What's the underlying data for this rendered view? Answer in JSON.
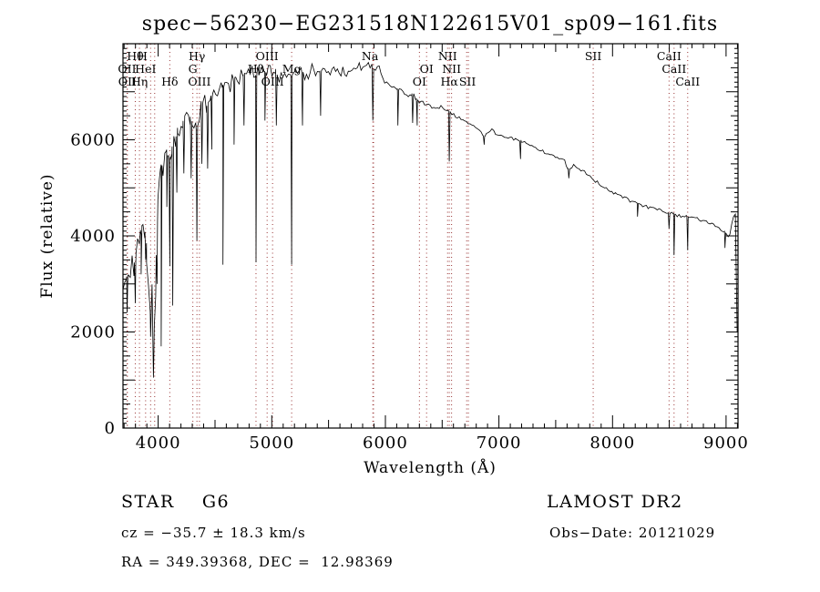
{
  "title": "spec−56230−EG231518N122615V01_sp09−161.fits",
  "annotations": {
    "object_class": "STAR    G6",
    "survey": "LAMOST DR2",
    "cz": "cz = −35.7 ± 18.3 km/s",
    "obs_date": "Obs−Date: 20121029",
    "radec": "RA = 349.39368, DEC =  12.98369"
  },
  "chart_data": {
    "type": "line",
    "title": "spec−56230−EG231518N122615V01_sp09−161.fits",
    "xlabel": "Wavelength (Å)",
    "ylabel": "Flux (relative)",
    "xlim": [
      3690,
      9105
    ],
    "ylim": [
      0,
      8000
    ],
    "x_tick_labels": [
      4000,
      5000,
      6000,
      7000,
      8000,
      9000
    ],
    "y_tick_labels": [
      0,
      2000,
      4000,
      6000
    ],
    "grid": false,
    "line_color": "#000000",
    "marker_color": "#993333",
    "noise_seed": 1337,
    "line_markers": [
      3726,
      3729,
      3798,
      3835,
      3889,
      3933,
      3969,
      4102,
      4305,
      4341,
      4363,
      4861,
      4959,
      5007,
      5175,
      5890,
      5896,
      6300,
      6363,
      6548,
      6563,
      6583,
      6716,
      6731,
      7830,
      8498,
      8542,
      8662
    ],
    "line_labels": [
      {
        "text": "Hθ",
        "wl": 3798,
        "row": 1
      },
      {
        "text": "H",
        "wl": 3862,
        "row": 1
      },
      {
        "text": "Hγ",
        "wl": 4341,
        "row": 1
      },
      {
        "text": "OIII",
        "wl": 4959,
        "row": 1
      },
      {
        "text": "Na",
        "wl": 5865,
        "row": 1
      },
      {
        "text": "NII",
        "wl": 6548,
        "row": 1
      },
      {
        "text": "SII",
        "wl": 7830,
        "row": 1
      },
      {
        "text": "CaII",
        "wl": 8498,
        "row": 1
      },
      {
        "text": "OII",
        "wl": 3726,
        "row": 2
      },
      {
        "text": "HeI",
        "wl": 3889,
        "row": 2
      },
      {
        "text": "G",
        "wl": 4305,
        "row": 2
      },
      {
        "text": "Hβ",
        "wl": 4861,
        "row": 2
      },
      {
        "text": "Mg",
        "wl": 5175,
        "row": 2
      },
      {
        "text": "OI",
        "wl": 6363,
        "row": 2
      },
      {
        "text": "NII",
        "wl": 6583,
        "row": 2
      },
      {
        "text": "CaII",
        "wl": 8542,
        "row": 2
      },
      {
        "text": "OII",
        "wl": 3729,
        "row": 3
      },
      {
        "text": "Hη",
        "wl": 3835,
        "row": 3
      },
      {
        "text": "Hδ",
        "wl": 4102,
        "row": 3
      },
      {
        "text": "OIII",
        "wl": 4363,
        "row": 3
      },
      {
        "text": "OIII",
        "wl": 5007,
        "row": 3
      },
      {
        "text": "OI",
        "wl": 6300,
        "row": 3
      },
      {
        "text": "Hα",
        "wl": 6563,
        "row": 3
      },
      {
        "text": "SII",
        "wl": 6723,
        "row": 3
      },
      {
        "text": "CaII",
        "wl": 8662,
        "row": 3
      }
    ],
    "continuum": [
      [
        3690,
        3000
      ],
      [
        3720,
        3100
      ],
      [
        3750,
        3300
      ],
      [
        3780,
        3300
      ],
      [
        3810,
        3700
      ],
      [
        3840,
        4100
      ],
      [
        3870,
        4300
      ],
      [
        3900,
        3800
      ],
      [
        3920,
        2800
      ],
      [
        3933,
        2300
      ],
      [
        3945,
        2700
      ],
      [
        3958,
        1700
      ],
      [
        3972,
        2500
      ],
      [
        3985,
        3800
      ],
      [
        4000,
        5000
      ],
      [
        4020,
        5400
      ],
      [
        4040,
        5500
      ],
      [
        4060,
        5800
      ],
      [
        4080,
        5700
      ],
      [
        4100,
        5500
      ],
      [
        4120,
        5700
      ],
      [
        4140,
        5900
      ],
      [
        4160,
        6100
      ],
      [
        4190,
        6200
      ],
      [
        4220,
        6400
      ],
      [
        4250,
        6500
      ],
      [
        4280,
        6500
      ],
      [
        4310,
        6300
      ],
      [
        4341,
        6200
      ],
      [
        4370,
        6600
      ],
      [
        4400,
        6800
      ],
      [
        4430,
        6700
      ],
      [
        4460,
        6900
      ],
      [
        4490,
        7000
      ],
      [
        4520,
        7000
      ],
      [
        4550,
        7100
      ],
      [
        4580,
        7100
      ],
      [
        4610,
        7200
      ],
      [
        4640,
        7200
      ],
      [
        4670,
        7300
      ],
      [
        4700,
        7300
      ],
      [
        4740,
        7350
      ],
      [
        4780,
        7400
      ],
      [
        4820,
        7350
      ],
      [
        4861,
        7300
      ],
      [
        4900,
        7450
      ],
      [
        4950,
        7400
      ],
      [
        5000,
        7450
      ],
      [
        5050,
        7350
      ],
      [
        5100,
        7400
      ],
      [
        5150,
        7300
      ],
      [
        5200,
        7400
      ],
      [
        5250,
        7450
      ],
      [
        5300,
        7350
      ],
      [
        5350,
        7450
      ],
      [
        5400,
        7400
      ],
      [
        5450,
        7450
      ],
      [
        5500,
        7400
      ],
      [
        5550,
        7500
      ],
      [
        5600,
        7450
      ],
      [
        5650,
        7400
      ],
      [
        5700,
        7450
      ],
      [
        5750,
        7500
      ],
      [
        5800,
        7500
      ],
      [
        5850,
        7550
      ],
      [
        5900,
        7450
      ],
      [
        5950,
        7400
      ],
      [
        6000,
        7250
      ],
      [
        6050,
        7150
      ],
      [
        6100,
        7050
      ],
      [
        6150,
        7000
      ],
      [
        6200,
        6950
      ],
      [
        6250,
        6900
      ],
      [
        6300,
        6800
      ],
      [
        6350,
        6750
      ],
      [
        6400,
        6700
      ],
      [
        6450,
        6650
      ],
      [
        6500,
        6650
      ],
      [
        6563,
        6600
      ],
      [
        6600,
        6500
      ],
      [
        6650,
        6450
      ],
      [
        6700,
        6400
      ],
      [
        6750,
        6350
      ],
      [
        6800,
        6250
      ],
      [
        6850,
        6150
      ],
      [
        6870,
        6050
      ],
      [
        6900,
        6150
      ],
      [
        6950,
        6200
      ],
      [
        7000,
        6100
      ],
      [
        7100,
        6050
      ],
      [
        7200,
        5950
      ],
      [
        7300,
        5850
      ],
      [
        7400,
        5750
      ],
      [
        7500,
        5650
      ],
      [
        7580,
        5550
      ],
      [
        7615,
        5350
      ],
      [
        7650,
        5450
      ],
      [
        7700,
        5400
      ],
      [
        7800,
        5250
      ],
      [
        7900,
        5050
      ],
      [
        8000,
        4900
      ],
      [
        8100,
        4800
      ],
      [
        8200,
        4700
      ],
      [
        8300,
        4600
      ],
      [
        8400,
        4550
      ],
      [
        8500,
        4480
      ],
      [
        8600,
        4420
      ],
      [
        8700,
        4380
      ],
      [
        8800,
        4330
      ],
      [
        8900,
        4250
      ],
      [
        8950,
        4150
      ],
      [
        9000,
        4050
      ],
      [
        9030,
        3980
      ],
      [
        9055,
        4300
      ],
      [
        9075,
        4470
      ],
      [
        9090,
        4470
      ],
      [
        9098,
        2000
      ],
      [
        9105,
        100
      ]
    ],
    "absorption_spikes": [
      [
        3726,
        2400
      ],
      [
        3798,
        2600
      ],
      [
        3850,
        3200
      ],
      [
        3890,
        3500
      ],
      [
        3933,
        1900
      ],
      [
        3958,
        1050
      ],
      [
        3990,
        3000
      ],
      [
        4026,
        1700
      ],
      [
        4076,
        4600
      ],
      [
        4102,
        3370
      ],
      [
        4128,
        2550
      ],
      [
        4164,
        4900
      ],
      [
        4226,
        5300
      ],
      [
        4290,
        5200
      ],
      [
        4341,
        3900
      ],
      [
        4385,
        5500
      ],
      [
        4435,
        5400
      ],
      [
        4472,
        5800
      ],
      [
        4570,
        3400
      ],
      [
        4668,
        5900
      ],
      [
        4755,
        6300
      ],
      [
        4861,
        3450
      ],
      [
        4940,
        6400
      ],
      [
        5040,
        6300
      ],
      [
        5175,
        3400
      ],
      [
        5270,
        6300
      ],
      [
        5430,
        6500
      ],
      [
        5890,
        6400
      ],
      [
        6110,
        6300
      ],
      [
        6240,
        6350
      ],
      [
        6280,
        6300
      ],
      [
        6563,
        5550
      ],
      [
        6870,
        5900
      ],
      [
        7190,
        5600
      ],
      [
        7615,
        5200
      ],
      [
        8220,
        4400
      ],
      [
        8498,
        4150
      ],
      [
        8542,
        3600
      ],
      [
        8662,
        3700
      ],
      [
        8990,
        3750
      ]
    ],
    "noise_regions": [
      [
        3690,
        3990,
        550
      ],
      [
        3990,
        4450,
        420
      ],
      [
        4450,
        4950,
        330
      ],
      [
        4950,
        5950,
        200
      ],
      [
        5950,
        6520,
        110
      ],
      [
        6520,
        7600,
        60
      ],
      [
        7600,
        9105,
        55
      ]
    ]
  }
}
